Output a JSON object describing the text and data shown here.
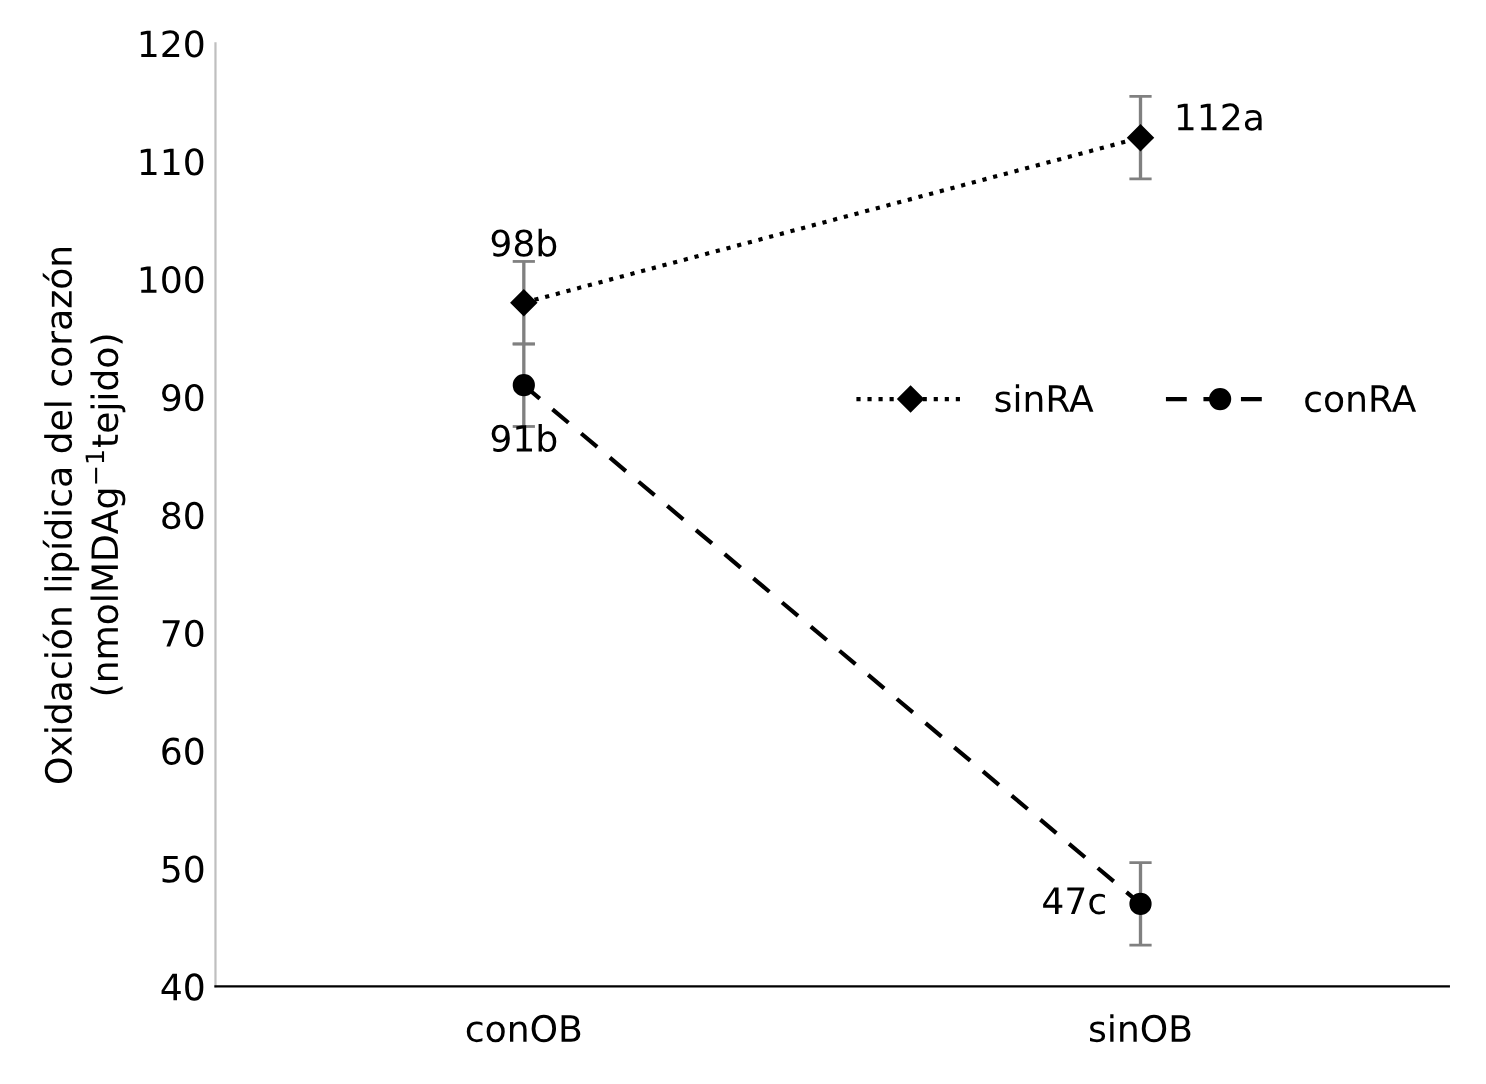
{
  "chart_data": {
    "type": "line",
    "ylabel": "Oxidación lipídica del corazón\n(nmolMDAg$^{−1}$tejido)",
    "categories": [
      "conOB",
      "sinOB"
    ],
    "series": [
      {
        "name": "sinRA",
        "color": "#000000",
        "values": [
          98,
          112
        ],
        "errors": [
          3.5,
          3.5
        ],
        "value_labels": [
          "98b",
          "112a"
        ],
        "marker": "diamond",
        "line_style": "dotted"
      },
      {
        "name": "conRA",
        "color": "#000000",
        "values": [
          91,
          47
        ],
        "errors": [
          3.5,
          3.5
        ],
        "value_labels": [
          "91b",
          "47c"
        ],
        "marker": "circle",
        "line_style": "dashed"
      }
    ],
    "ylim": [
      40,
      120
    ],
    "yticks": [
      40,
      50,
      60,
      70,
      80,
      90,
      100,
      110,
      120
    ],
    "grid": false,
    "legend": "right"
  }
}
